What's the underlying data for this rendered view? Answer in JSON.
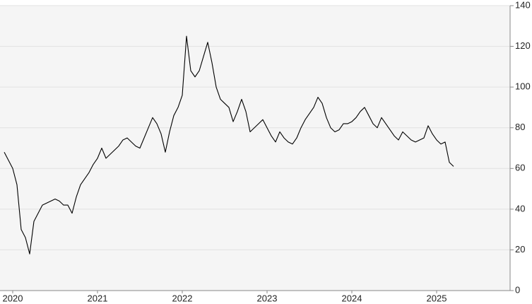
{
  "chart_data": {
    "type": "line",
    "x": [
      2019.9,
      2019.95,
      2020,
      2020.05,
      2020.1,
      2020.15,
      2020.2,
      2020.25,
      2020.3,
      2020.35,
      2020.4,
      2020.45,
      2020.5,
      2020.55,
      2020.6,
      2020.65,
      2020.7,
      2020.75,
      2020.8,
      2020.85,
      2020.9,
      2020.95,
      2021,
      2021.05,
      2021.1,
      2021.15,
      2021.2,
      2021.25,
      2021.3,
      2021.35,
      2021.4,
      2021.45,
      2021.5,
      2021.55,
      2021.6,
      2021.65,
      2021.7,
      2021.75,
      2021.8,
      2021.85,
      2021.9,
      2021.95,
      2022,
      2022.05,
      2022.1,
      2022.15,
      2022.2,
      2022.25,
      2022.3,
      2022.35,
      2022.4,
      2022.45,
      2022.5,
      2022.55,
      2022.6,
      2022.65,
      2022.7,
      2022.75,
      2022.8,
      2022.85,
      2022.9,
      2022.95,
      2023,
      2023.05,
      2023.1,
      2023.15,
      2023.2,
      2023.25,
      2023.3,
      2023.35,
      2023.4,
      2023.45,
      2023.5,
      2023.55,
      2023.6,
      2023.65,
      2023.7,
      2023.75,
      2023.8,
      2023.85,
      2023.9,
      2023.95,
      2024,
      2024.05,
      2024.1,
      2024.15,
      2024.2,
      2024.25,
      2024.3,
      2024.35,
      2024.4,
      2024.45,
      2024.5,
      2024.55,
      2024.6,
      2024.65,
      2024.7,
      2024.75,
      2024.8,
      2024.85,
      2024.9,
      2024.95,
      2025,
      2025.05,
      2025.1,
      2025.15,
      2025.2
    ],
    "series": [
      {
        "color": "#000000",
        "values": [
          68,
          64,
          60,
          52,
          30,
          26,
          18,
          34,
          38,
          42,
          43,
          44,
          45,
          44,
          42,
          42,
          38,
          46,
          52,
          55,
          58,
          62,
          65,
          70,
          65,
          67,
          69,
          71,
          74,
          75,
          73,
          71,
          70,
          75,
          80,
          85,
          82,
          77,
          68,
          78,
          86,
          90,
          96,
          125,
          108,
          105,
          108,
          115,
          122,
          112,
          100,
          94,
          92,
          90,
          83,
          88,
          94,
          88,
          78,
          80,
          82,
          84,
          80,
          76,
          73,
          78,
          75,
          73,
          72,
          75,
          80,
          84,
          87,
          90,
          95,
          92,
          85,
          80,
          78,
          79,
          82,
          82,
          83,
          85,
          88,
          90,
          86,
          82,
          80,
          85,
          82,
          79,
          76,
          74,
          78,
          76,
          74,
          73,
          74,
          75,
          81,
          77,
          74,
          72,
          73,
          63,
          61
        ]
      }
    ],
    "xlim": [
      2019.85,
      2025.85
    ],
    "xticks": [
      2020,
      2021,
      2022,
      2023,
      2024,
      2025
    ],
    "ylim": [
      0,
      140
    ],
    "yticks": [
      0,
      20,
      40,
      60,
      80,
      100,
      120,
      140
    ],
    "grid": true
  }
}
